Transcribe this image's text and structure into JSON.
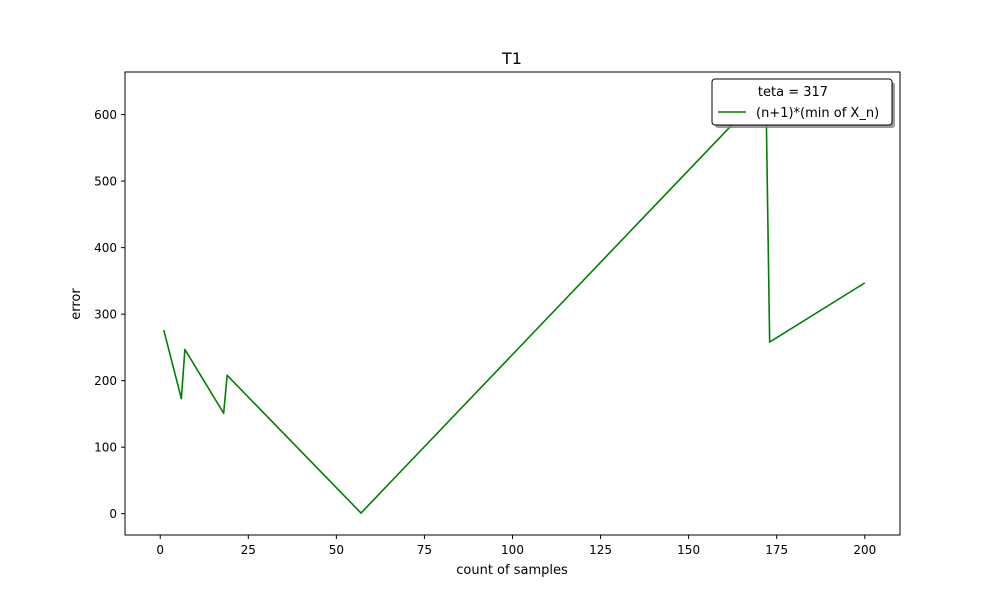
{
  "chart_data": {
    "type": "line",
    "title": "T1",
    "xlabel": "count of samples",
    "ylabel": "error",
    "xlim": [
      -10,
      210
    ],
    "ylim": [
      -32,
      664
    ],
    "xticks": [
      0,
      25,
      50,
      75,
      100,
      125,
      150,
      175,
      200
    ],
    "yticks": [
      0,
      100,
      200,
      300,
      400,
      500,
      600
    ],
    "grid": false,
    "legend": {
      "location": "top-right",
      "title": "teta = 317",
      "entries": [
        "(n+1)*(min of X_n)"
      ]
    },
    "series": [
      {
        "name": "(n+1)*(min of X_n)",
        "color": "#008000",
        "x": [
          1,
          6,
          7,
          18,
          19,
          57,
          164,
          171,
          172,
          173,
          200
        ],
        "y": [
          276,
          173,
          247,
          151,
          208,
          1,
          594,
          625,
          612,
          258,
          347
        ]
      }
    ]
  }
}
